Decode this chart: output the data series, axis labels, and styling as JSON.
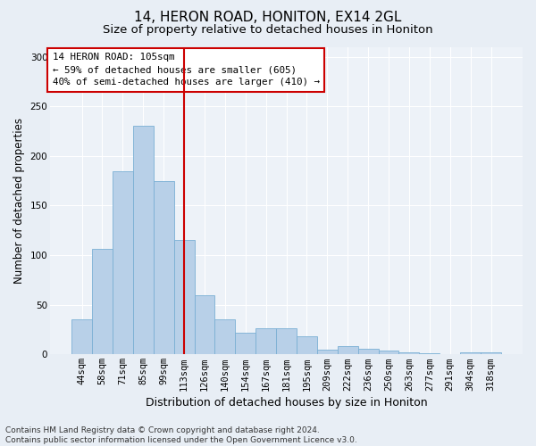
{
  "title1": "14, HERON ROAD, HONITON, EX14 2GL",
  "title2": "Size of property relative to detached houses in Honiton",
  "xlabel": "Distribution of detached houses by size in Honiton",
  "ylabel": "Number of detached properties",
  "categories": [
    "44sqm",
    "58sqm",
    "71sqm",
    "85sqm",
    "99sqm",
    "113sqm",
    "126sqm",
    "140sqm",
    "154sqm",
    "167sqm",
    "181sqm",
    "195sqm",
    "209sqm",
    "222sqm",
    "236sqm",
    "250sqm",
    "263sqm",
    "277sqm",
    "291sqm",
    "304sqm",
    "318sqm"
  ],
  "values": [
    35,
    106,
    185,
    230,
    175,
    115,
    60,
    35,
    22,
    26,
    26,
    18,
    5,
    8,
    6,
    4,
    2,
    1,
    0,
    2,
    2
  ],
  "bar_color": "#b8d0e8",
  "bar_edge_color": "#7aafd4",
  "vline_color": "#cc0000",
  "annotation_text": "14 HERON ROAD: 105sqm\n← 59% of detached houses are smaller (605)\n40% of semi-detached houses are larger (410) →",
  "annotation_box_color": "#ffffff",
  "annotation_box_edge": "#cc0000",
  "ylim": [
    0,
    310
  ],
  "yticks": [
    0,
    50,
    100,
    150,
    200,
    250,
    300
  ],
  "footer": "Contains HM Land Registry data © Crown copyright and database right 2024.\nContains public sector information licensed under the Open Government Licence v3.0.",
  "bg_color": "#e8eef5",
  "plot_bg_color": "#edf2f8",
  "grid_color": "#ffffff",
  "title1_fontsize": 11,
  "title2_fontsize": 9.5,
  "xlabel_fontsize": 9,
  "ylabel_fontsize": 8.5,
  "tick_fontsize": 7.5,
  "footer_fontsize": 6.5,
  "vline_bin_index": 5
}
